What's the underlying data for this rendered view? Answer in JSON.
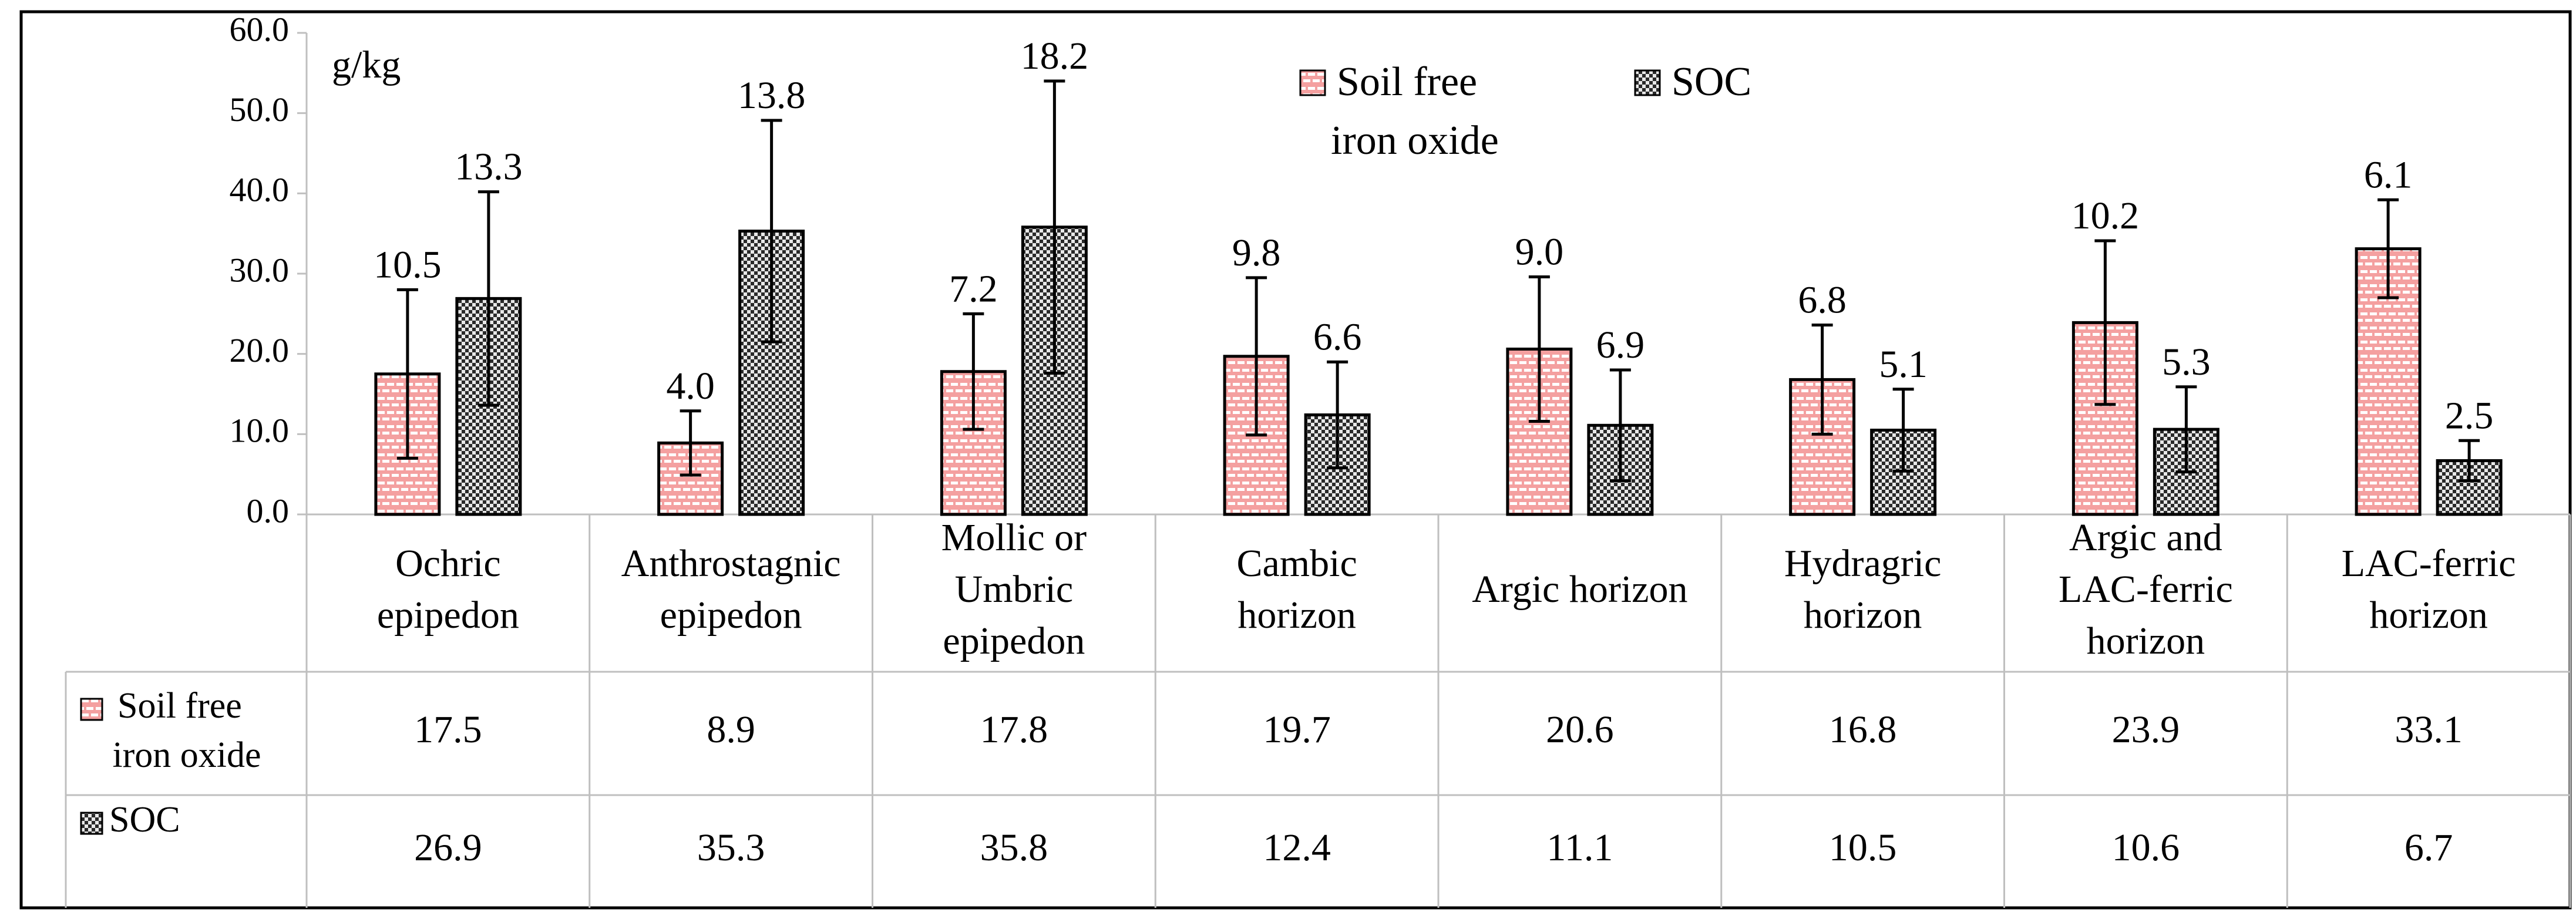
{
  "chart_data": {
    "type": "bar",
    "unit_label": "g/kg",
    "ylim": [
      0,
      60
    ],
    "yticks": [
      "0.0",
      "10.0",
      "20.0",
      "30.0",
      "40.0",
      "50.0",
      "60.0"
    ],
    "categories": [
      [
        "Ochric",
        "epipedon"
      ],
      [
        "Anthrostagnic",
        "epipedon"
      ],
      [
        "Mollic or",
        "Umbric",
        "epipedon"
      ],
      [
        "Cambic",
        "horizon"
      ],
      [
        "Argic horizon"
      ],
      [
        "Hydragric",
        "horizon"
      ],
      [
        "Argic and",
        "LAC-ferric",
        "horizon"
      ],
      [
        "LAC-ferric",
        "horizon"
      ]
    ],
    "series": [
      {
        "name": "Soil free iron oxide",
        "legend_lines": [
          "Soil free",
          "iron oxide"
        ],
        "table_lines": [
          "Soil free",
          "iron oxide"
        ],
        "color": "#f4a0a0",
        "pattern": "brick",
        "values": [
          17.5,
          8.9,
          17.8,
          19.7,
          20.6,
          16.8,
          23.9,
          33.1
        ],
        "table_values": [
          "17.5",
          "8.9",
          "17.8",
          "19.7",
          "20.6",
          "16.8",
          "23.9",
          "33.1"
        ],
        "errors": [
          10.5,
          4.0,
          7.2,
          9.8,
          9.0,
          6.8,
          10.2,
          6.1
        ],
        "error_labels": [
          "10.5",
          "4.0",
          "7.2",
          "9.8",
          "9.0",
          "6.8",
          "10.2",
          "6.1"
        ]
      },
      {
        "name": "SOC",
        "legend_lines": [
          "SOC"
        ],
        "table_lines": [
          "SOC"
        ],
        "color": "#3a3a3a",
        "pattern": "checker",
        "values": [
          26.9,
          35.3,
          35.8,
          12.4,
          11.1,
          10.5,
          10.6,
          6.7
        ],
        "table_values": [
          "26.9",
          "35.3",
          "35.8",
          "12.4",
          "11.1",
          "10.5",
          "10.6",
          "6.7"
        ],
        "errors": [
          13.3,
          13.8,
          18.2,
          6.6,
          6.9,
          5.1,
          5.3,
          2.5
        ],
        "error_labels": [
          "13.3",
          "13.8",
          "18.2",
          "6.6",
          "6.9",
          "5.1",
          "5.3",
          "2.5"
        ]
      }
    ],
    "legend_position": "top-center",
    "grid": false
  }
}
